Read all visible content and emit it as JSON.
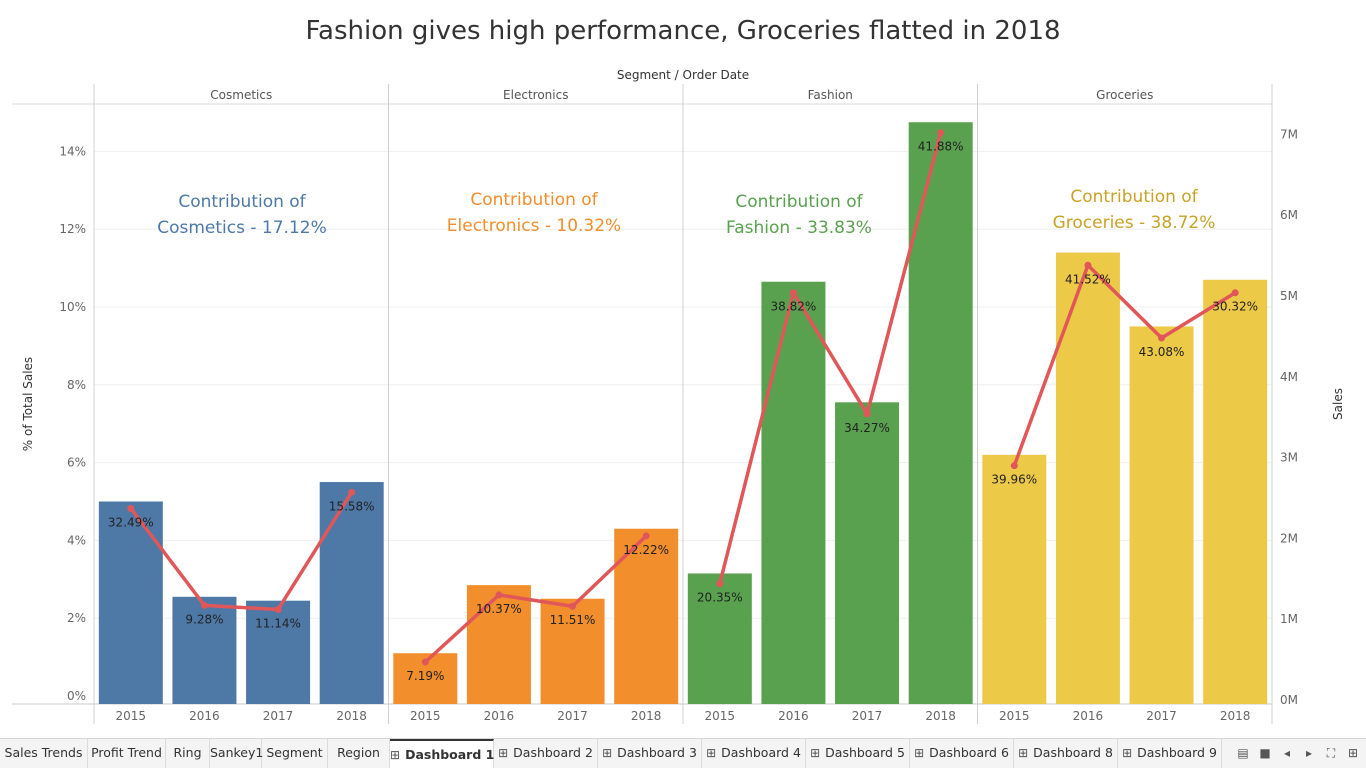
{
  "title": "Fashion gives high performance, Groceries flatted in 2018",
  "header": "Segment  /  Order Date",
  "chart_data": {
    "type": "bar",
    "left_axis": {
      "label": "% of Total Sales",
      "ticks": [
        "0%",
        "2%",
        "4%",
        "6%",
        "8%",
        "10%",
        "12%",
        "14%"
      ],
      "range": [
        0,
        15
      ]
    },
    "right_axis": {
      "label": "Sales",
      "ticks": [
        "0M",
        "1M",
        "2M",
        "3M",
        "4M",
        "5M",
        "6M",
        "7M"
      ],
      "range": [
        0,
        7.4
      ]
    },
    "panels": [
      {
        "name": "Cosmetics",
        "color": "#4e79a7",
        "annotation": [
          "Contribution of",
          "Cosmetics - 17.12%"
        ],
        "bars": [
          {
            "year": "2015",
            "pct_total": 5.0,
            "sales_m": 2.42,
            "label": "32.49%"
          },
          {
            "year": "2016",
            "pct_total": 2.55,
            "sales_m": 1.22,
            "label": "9.28%"
          },
          {
            "year": "2017",
            "pct_total": 2.45,
            "sales_m": 1.17,
            "label": "11.14%"
          },
          {
            "year": "2018",
            "pct_total": 5.5,
            "sales_m": 2.62,
            "label": "15.58%"
          }
        ]
      },
      {
        "name": "Electronics",
        "color": "#f28e2b",
        "annotation": [
          "Contribution  of",
          "Electronics - 10.32%"
        ],
        "bars": [
          {
            "year": "2015",
            "pct_total": 1.1,
            "sales_m": 0.52,
            "label": "7.19%"
          },
          {
            "year": "2016",
            "pct_total": 2.85,
            "sales_m": 1.35,
            "label": "10.37%"
          },
          {
            "year": "2017",
            "pct_total": 2.5,
            "sales_m": 1.21,
            "label": "11.51%"
          },
          {
            "year": "2018",
            "pct_total": 4.3,
            "sales_m": 2.08,
            "label": "12.22%"
          }
        ]
      },
      {
        "name": "Fashion",
        "color": "#59a14f",
        "annotation": [
          "Contribution of",
          "Fashion - 33.83%"
        ],
        "bars": [
          {
            "year": "2015",
            "pct_total": 3.15,
            "sales_m": 1.49,
            "label": "20.35%"
          },
          {
            "year": "2016",
            "pct_total": 10.65,
            "sales_m": 5.09,
            "label": "38.82%"
          },
          {
            "year": "2017",
            "pct_total": 7.55,
            "sales_m": 3.59,
            "label": "34.27%"
          },
          {
            "year": "2018",
            "pct_total": 14.75,
            "sales_m": 7.07,
            "label": "41.88%"
          }
        ]
      },
      {
        "name": "Groceries",
        "color": "#edc948",
        "annotation": [
          "Contribution of",
          "Groceries - 38.72%"
        ],
        "bars": [
          {
            "year": "2015",
            "pct_total": 6.2,
            "sales_m": 2.95,
            "label": "39.96%"
          },
          {
            "year": "2016",
            "pct_total": 11.4,
            "sales_m": 5.43,
            "label": "41.52%"
          },
          {
            "year": "2017",
            "pct_total": 9.5,
            "sales_m": 4.53,
            "label": "43.08%"
          },
          {
            "year": "2018",
            "pct_total": 10.7,
            "sales_m": 5.09,
            "label": "30.32%"
          }
        ]
      }
    ],
    "line_color": "#e15759",
    "grid": true
  },
  "tabs": [
    {
      "label": "Sales Trends",
      "icon": ""
    },
    {
      "label": "Profit Trend",
      "icon": ""
    },
    {
      "label": "Ring",
      "icon": ""
    },
    {
      "label": "Sankey1",
      "icon": ""
    },
    {
      "label": "Segment",
      "icon": ""
    },
    {
      "label": "Region",
      "icon": ""
    },
    {
      "label": "Dashboard 1",
      "icon": "dashboard-icon",
      "active": true
    },
    {
      "label": "Dashboard 2",
      "icon": "dashboard-icon"
    },
    {
      "label": "Dashboard 3",
      "icon": "dashboard-icon"
    },
    {
      "label": "Dashboard 4",
      "icon": "dashboard-icon"
    },
    {
      "label": "Dashboard 5",
      "icon": "dashboard-icon"
    },
    {
      "label": "Dashboard 6",
      "icon": "dashboard-icon"
    },
    {
      "label": "Dashboard 8",
      "icon": "dashboard-icon"
    },
    {
      "label": "Dashboard 9",
      "icon": "dashboard-icon"
    }
  ],
  "controls": [
    {
      "name": "filmstrip-view-icon",
      "glyph": "▤"
    },
    {
      "name": "tabs-view-icon",
      "glyph": "■"
    },
    {
      "name": "prev-sheet-icon",
      "glyph": "◂"
    },
    {
      "name": "next-sheet-icon",
      "glyph": "▸"
    },
    {
      "name": "fit-screen-icon",
      "glyph": "⛶"
    },
    {
      "name": "grid-view-icon",
      "glyph": "⊞"
    }
  ]
}
